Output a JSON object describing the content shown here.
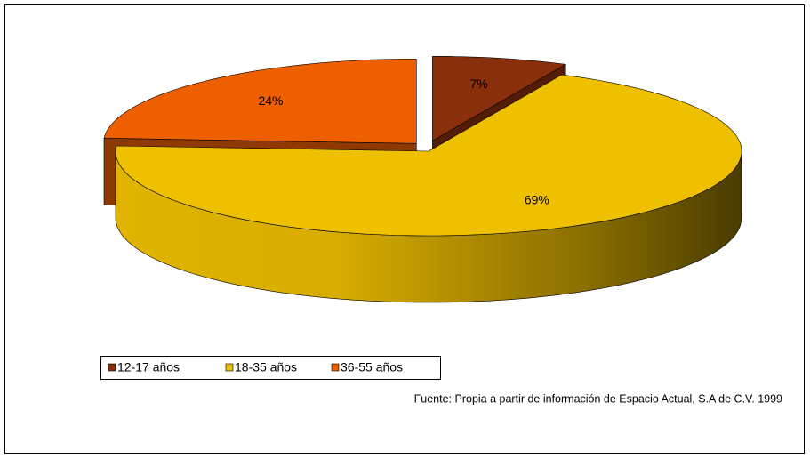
{
  "chart_data": {
    "type": "pie",
    "categories": [
      "12-17 años",
      "18-35 años",
      "36-55 años"
    ],
    "values": [
      7,
      69,
      24
    ],
    "value_labels": [
      "7%",
      "69%",
      "24%"
    ],
    "colors": [
      "#8a2f0b",
      "#efc000",
      "#ee5f00"
    ],
    "legend": "bottom-left",
    "source": "Fuente: Propia a partir de información de Espacio Actual, S.A de C.V. 1999"
  }
}
